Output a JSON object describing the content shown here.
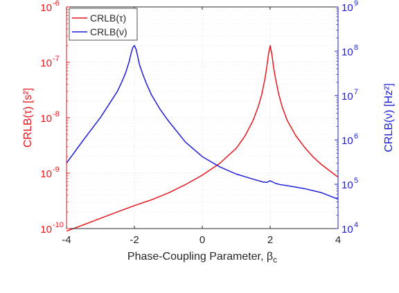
{
  "chart_data": {
    "type": "line",
    "xlabel": "Phase-Coupling Parameter, β",
    "xlabel_sub": "c",
    "ylabel_left": "CRLB(τ) [s²]",
    "ylabel_right": "CRLB(ν) [Hz²]",
    "x_range": [
      -4,
      4
    ],
    "x_ticks": [
      -4,
      -2,
      0,
      2,
      4
    ],
    "x_tick_labels": [
      "-4",
      "-2",
      "0",
      "2",
      "4"
    ],
    "y_left_scale": "log",
    "y_left_range": [
      1e-10,
      1e-06
    ],
    "y_left_ticks": [
      1e-10,
      1e-09,
      1e-08,
      1e-07,
      1e-06
    ],
    "y_left_tick_labels": [
      "10",
      "10",
      "10",
      "10",
      "10"
    ],
    "y_left_tick_exponents": [
      "-10",
      "-9",
      "-8",
      "-7",
      "-6"
    ],
    "y_right_scale": "log",
    "y_right_range": [
      10000.0,
      1000000000.0
    ],
    "y_right_ticks": [
      10000.0,
      100000.0,
      1000000.0,
      10000000.0,
      100000000.0,
      1000000000.0
    ],
    "y_right_tick_labels": [
      "10",
      "10",
      "10",
      "10",
      "10",
      "10"
    ],
    "y_right_tick_exponents": [
      "4",
      "5",
      "6",
      "7",
      "8",
      "9"
    ],
    "grid": true,
    "legend_placement": "top-left",
    "left_axis_color": "#e8141b",
    "right_axis_color": "#1c1cdc",
    "series": [
      {
        "name": "CRLB(τ)",
        "axis": "left",
        "color": "#e8141b",
        "x": [
          -4,
          -3.5,
          -3,
          -2.5,
          -2,
          -1.5,
          -1,
          -0.5,
          0,
          0.5,
          1,
          1.25,
          1.5,
          1.65,
          1.75,
          1.85,
          1.9,
          1.95,
          2,
          2.05,
          2.1,
          2.15,
          2.25,
          2.35,
          2.5,
          2.75,
          3,
          3.25,
          3.5,
          4
        ],
        "y": [
          9e-11,
          1.17e-10,
          1.53e-10,
          2e-10,
          2.6e-10,
          3.3e-10,
          4.4e-10,
          6.2e-10,
          9.2e-10,
          1.48e-09,
          2.8e-09,
          4.6e-09,
          9e-09,
          1.6e-08,
          2.6e-08,
          5.2e-08,
          8.2e-08,
          1.4e-07,
          2e-07,
          1.4e-07,
          8.2e-08,
          5.4e-08,
          2.7e-08,
          1.6e-08,
          9e-09,
          4.8e-09,
          3e-09,
          2e-09,
          1.45e-09,
          8.5e-10
        ]
      },
      {
        "name": "CRLB(ν)",
        "axis": "right",
        "color": "#1c1cdc",
        "x": [
          -4,
          -3.5,
          -3,
          -2.75,
          -2.5,
          -2.35,
          -2.25,
          -2.15,
          -2.1,
          -2.05,
          -2,
          -1.95,
          -1.9,
          -1.85,
          -1.75,
          -1.65,
          -1.5,
          -1.25,
          -1,
          -0.5,
          0,
          0.5,
          1,
          1.5,
          1.8,
          1.9,
          1.95,
          2,
          2.05,
          2.15,
          2.3,
          2.5,
          3,
          3.5,
          4
        ],
        "y": [
          300000.0,
          1000000.0,
          3200000.0,
          6300000.0,
          12500000.0,
          22000000.0,
          34000000.0,
          60000000.0,
          88000000.0,
          120000000.0,
          135000000.0,
          110000000.0,
          75000000.0,
          50000000.0,
          30000000.0,
          19000000.0,
          10500000.0,
          5000000.0,
          2700000.0,
          900000.0,
          420000.0,
          250000.0,
          170000.0,
          130000.0,
          112000.0,
          110000.0,
          115000.0,
          120000.0,
          115000.0,
          105000.0,
          98000.0,
          93000.0,
          80000.0,
          65000.0,
          46000.0
        ]
      }
    ]
  }
}
